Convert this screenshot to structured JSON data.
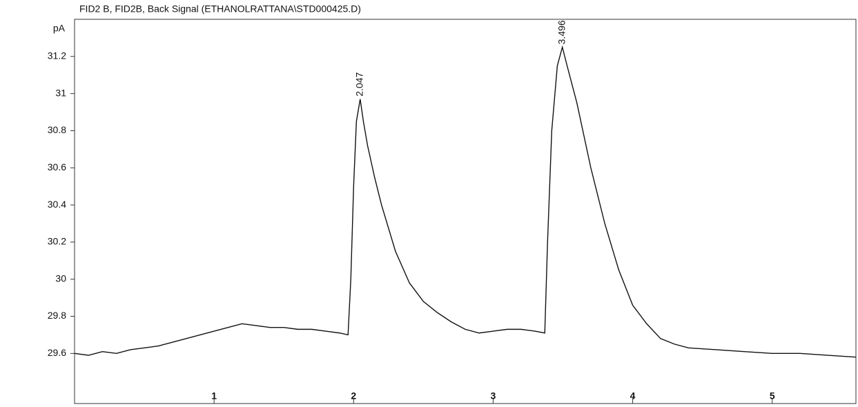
{
  "chart_data": {
    "type": "line",
    "title": "FID2 B, FID2B, Back Signal (ETHANOLRATTANA\\STD000425.D)",
    "y_label": "pA",
    "x": [
      0,
      0.1,
      0.2,
      0.3,
      0.4,
      0.5,
      0.6,
      0.7,
      0.8,
      0.9,
      1.0,
      1.1,
      1.2,
      1.3,
      1.4,
      1.5,
      1.6,
      1.7,
      1.8,
      1.9,
      1.96,
      1.98,
      2.0,
      2.02,
      2.047,
      2.07,
      2.1,
      2.15,
      2.2,
      2.3,
      2.4,
      2.5,
      2.6,
      2.7,
      2.8,
      2.9,
      3.0,
      3.1,
      3.2,
      3.3,
      3.37,
      3.39,
      3.42,
      3.46,
      3.496,
      3.53,
      3.6,
      3.7,
      3.8,
      3.9,
      4.0,
      4.1,
      4.2,
      4.3,
      4.4,
      4.6,
      4.8,
      5.0,
      5.2,
      5.4,
      5.6
    ],
    "series": [
      {
        "color": "#111111",
        "values": [
          29.6,
          29.59,
          29.61,
          29.6,
          29.62,
          29.63,
          29.64,
          29.66,
          29.68,
          29.7,
          29.72,
          29.74,
          29.76,
          29.75,
          29.74,
          29.74,
          29.73,
          29.73,
          29.72,
          29.71,
          29.7,
          30.0,
          30.5,
          30.85,
          30.97,
          30.85,
          30.72,
          30.55,
          30.4,
          30.15,
          29.98,
          29.88,
          29.82,
          29.77,
          29.73,
          29.71,
          29.72,
          29.73,
          29.73,
          29.72,
          29.71,
          30.2,
          30.8,
          31.15,
          31.25,
          31.15,
          30.95,
          30.6,
          30.3,
          30.05,
          29.86,
          29.76,
          29.68,
          29.65,
          29.63,
          29.62,
          29.61,
          29.6,
          29.6,
          29.59,
          29.58
        ]
      }
    ],
    "peak_label_indices": [
      24,
      44
    ],
    "xlim": [
      0,
      5.6
    ],
    "xticks": [
      1,
      2,
      3,
      4,
      5
    ],
    "ylim": [
      29.33,
      31.4
    ],
    "yticks": [
      29.6,
      29.8,
      30,
      30.2,
      30.4,
      30.6,
      30.8,
      31,
      31.2
    ],
    "grid": false
  }
}
